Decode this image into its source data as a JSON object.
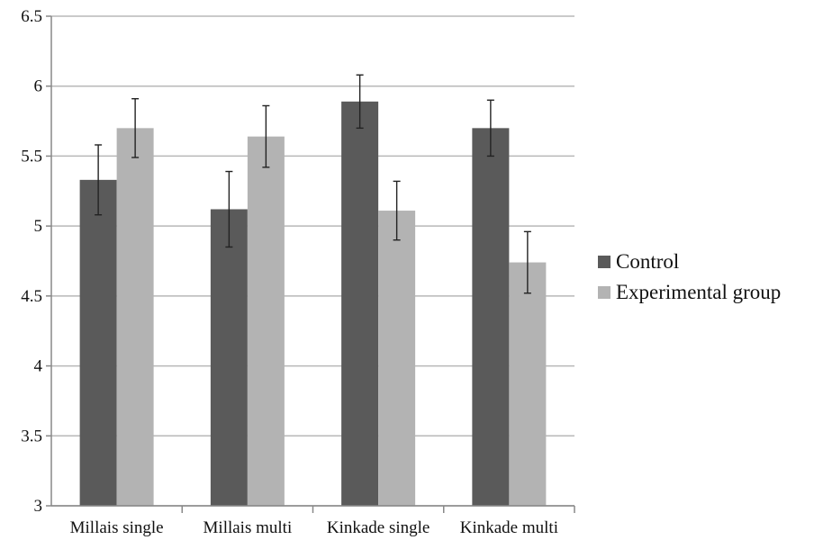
{
  "chart_data": {
    "type": "bar",
    "categories": [
      "Millais single",
      "Millais multi",
      "Kinkade single",
      "Kinkade multi"
    ],
    "series": [
      {
        "name": "Control",
        "color": "#5a5a5a",
        "values": [
          5.33,
          5.12,
          5.89,
          5.7
        ],
        "error": [
          0.25,
          0.27,
          0.19,
          0.2
        ]
      },
      {
        "name": "Experimental group",
        "color": "#b3b3b3",
        "values": [
          5.7,
          5.64,
          5.11,
          4.74
        ],
        "error": [
          0.21,
          0.22,
          0.21,
          0.22
        ]
      }
    ],
    "yticks": [
      "3",
      "3.5",
      "4",
      "4.5",
      "5",
      "5.5",
      "6",
      "6.5"
    ],
    "ylim": [
      3,
      6.5
    ],
    "grid": true,
    "legend_position": "right"
  }
}
